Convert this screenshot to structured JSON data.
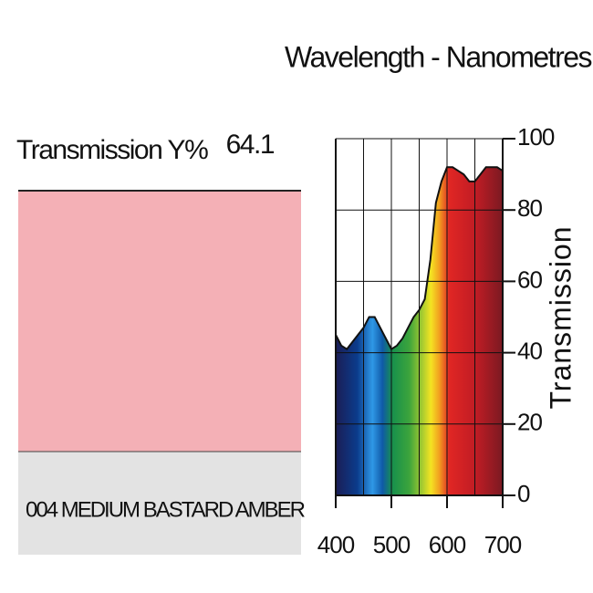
{
  "swatch": {
    "label": "Transmission Y%",
    "value": 64.1,
    "color": "#f4b0b6",
    "name": "004 MEDIUM BASTARD AMBER"
  },
  "chart_data": {
    "type": "area",
    "title": "Wavelength - Nanometres",
    "y_label": "Transmission",
    "x": [
      400,
      410,
      420,
      430,
      440,
      450,
      460,
      470,
      480,
      490,
      500,
      510,
      520,
      530,
      540,
      550,
      560,
      570,
      580,
      590,
      600,
      610,
      620,
      630,
      640,
      650,
      660,
      670,
      680,
      690,
      700
    ],
    "values": [
      45,
      42,
      41,
      43,
      45,
      47,
      50,
      50,
      47,
      44,
      41,
      42,
      44,
      47,
      50,
      52,
      55,
      66,
      82,
      88,
      92,
      92,
      91,
      90,
      88,
      88,
      90,
      92,
      92,
      92,
      91
    ],
    "xlim": [
      400,
      700
    ],
    "xticks": [
      400,
      500,
      600,
      700
    ],
    "x_grid": [
      400,
      450,
      500,
      550,
      600,
      650,
      700
    ],
    "ylim": [
      0,
      100
    ],
    "yticks": [
      0,
      20,
      40,
      60,
      80,
      100
    ],
    "grid": true
  }
}
